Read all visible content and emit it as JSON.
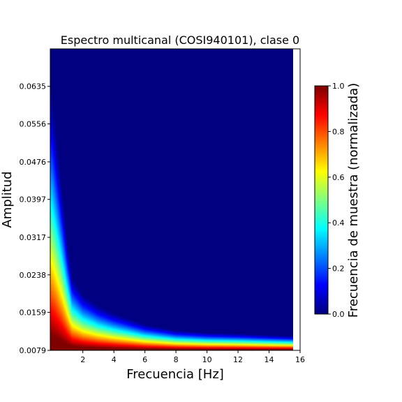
{
  "chart_data": {
    "type": "heatmap",
    "title": "Espectro multicanal (COSI940101), clase 0",
    "xlabel": "Frecuencia [Hz]",
    "ylabel": "Amplitud",
    "xlim": [
      -0.1,
      16
    ],
    "data_xlim": [
      -0.1,
      15.6
    ],
    "ylim": [
      0.0079,
      0.0714
    ],
    "xticks": [
      2,
      4,
      6,
      8,
      10,
      12,
      14,
      16
    ],
    "xtick_labels": [
      "2",
      "4",
      "6",
      "8",
      "10",
      "12",
      "14",
      "16"
    ],
    "yticks": [
      0.0079,
      0.0159,
      0.0238,
      0.0317,
      0.0397,
      0.0476,
      0.0556,
      0.0635
    ],
    "ytick_labels": [
      "0.0079",
      "0.0159",
      "0.0238",
      "0.0317",
      "0.0397",
      "0.0476",
      "0.0556",
      "0.0635"
    ],
    "colormap": "jet",
    "colorbar": {
      "label": "Frecuencia de muestra (normalizada)",
      "range": [
        0.0,
        1.0
      ],
      "ticks": [
        0.0,
        0.2,
        0.4,
        0.6,
        0.8,
        1.0
      ],
      "tick_labels": [
        "0.0",
        "0.2",
        "0.4",
        "0.6",
        "0.8",
        "1.0"
      ]
    },
    "density_profile": {
      "description": "normalized sample density decreasing with amplitude; amplitude at which density fades to ~0 per frequency",
      "frequency_hz": [
        0.0,
        1.0,
        1.3,
        2.0,
        3.0,
        4.0,
        6.0,
        8.0,
        10.0,
        12.0,
        14.0,
        15.5
      ],
      "extent_amplitude": [
        0.0635,
        0.0317,
        0.0238,
        0.02,
        0.0175,
        0.0159,
        0.0135,
        0.0122,
        0.0117,
        0.0115,
        0.0112,
        0.011
      ]
    }
  }
}
